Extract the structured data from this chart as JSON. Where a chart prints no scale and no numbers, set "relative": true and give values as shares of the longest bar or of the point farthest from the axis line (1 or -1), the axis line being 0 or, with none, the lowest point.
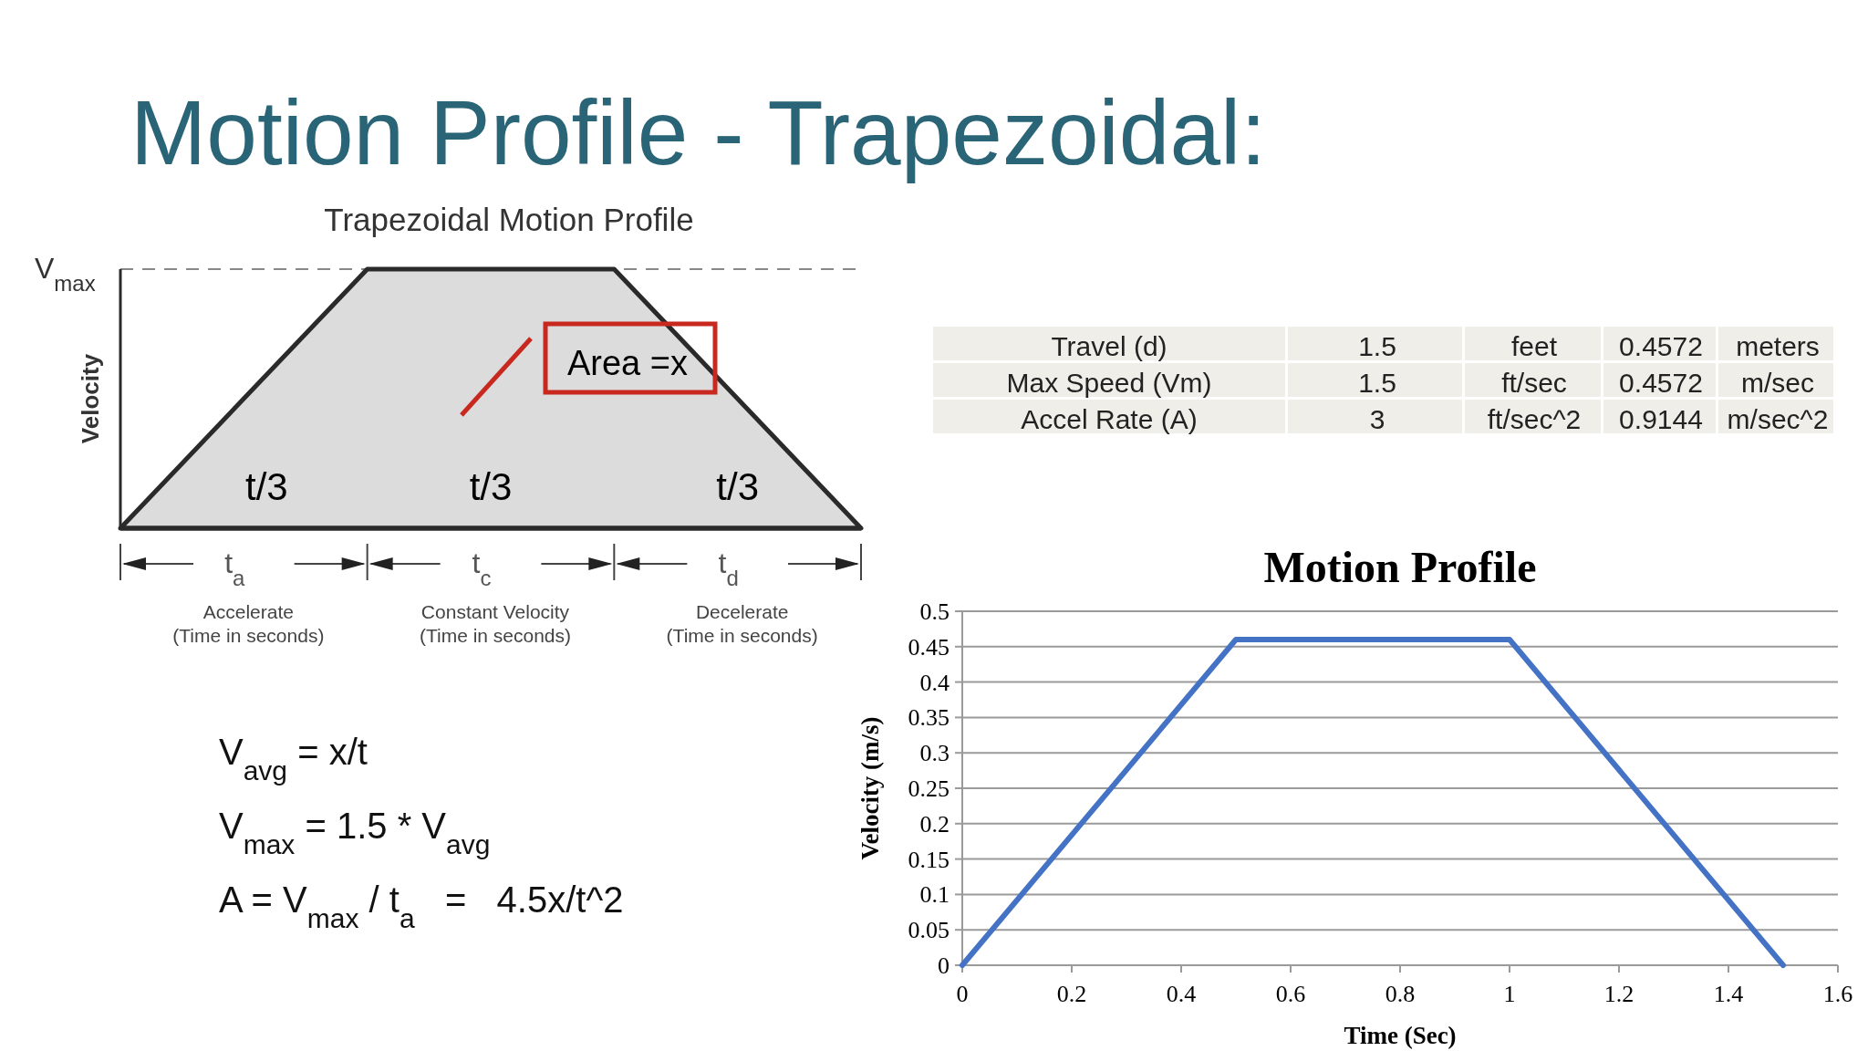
{
  "chart_data": [
    {
      "type": "other",
      "title": "Motion Profile - Trapezoidal:"
    },
    {
      "type": "area",
      "title": "Trapezoidal Motion Profile",
      "ylabel": "Velocity",
      "relative": true,
      "categories": [
        null,
        null,
        null,
        null
      ],
      "values": [
        0,
        1,
        1,
        0
      ],
      "color": "#dcdcdc",
      "ref_lines": [
        {
          "axis": "y",
          "value": 1,
          "label": "V$_{max}$",
          "line_style": "dashed"
        }
      ],
      "annotations": [
        "t/3",
        "t/3",
        "t/3",
        "Area =x",
        "t$_{a}$",
        "t$_{c}$",
        "t$_{d}$",
        "Accelerate",
        "(Time in seconds)",
        "Constant Velocity",
        "(Time in seconds)",
        "Decelerate",
        "(Time in seconds)"
      ]
    },
    {
      "type": "other",
      "annotations": [
        "Travel (d)",
        "1.5",
        "feet",
        "0.4572",
        "meters",
        "Max Speed (Vm)",
        "1.5",
        "ft/sec",
        "0.4572",
        "m/sec",
        "Accel Rate (A)",
        "3",
        "ft/sec^2",
        "0.9144",
        "m/sec^2"
      ]
    },
    {
      "type": "other",
      "annotations": [
        "V$_{avg}$ = x/t",
        "V$_{max}$ = 1.5 * V$_{avg}$",
        "A = V$_{max}$ / t$_{a}$   =   4.5x/t^2"
      ]
    },
    {
      "type": "line",
      "title": "Motion Profile",
      "xlabel": "Time (Sec)",
      "ylabel": "Velocity (m/s)",
      "x": [
        0,
        0.5,
        1,
        1.5
      ],
      "values": [
        0,
        0.46,
        0.46,
        0
      ],
      "color": "#4472c4",
      "grid": "y",
      "xlim": [
        0,
        1.6
      ],
      "xticks": [
        0,
        0.2,
        0.4,
        0.6,
        0.8,
        1,
        1.2,
        1.4,
        1.6
      ],
      "ylim": [
        0,
        0.5
      ],
      "yticks": [
        0,
        0.05,
        0.1,
        0.15,
        0.2,
        0.25,
        0.3,
        0.35,
        0.4,
        0.45,
        0.5
      ]
    }
  ]
}
